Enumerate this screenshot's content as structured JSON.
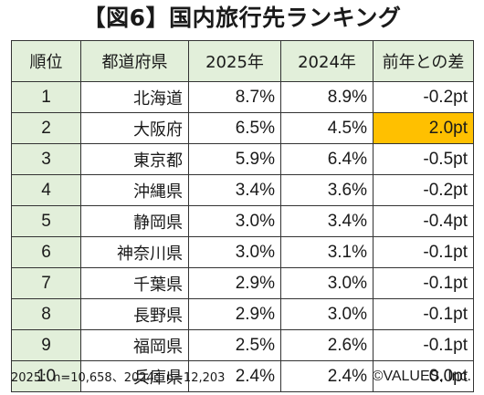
{
  "title": "【図6】国内旅行先ランキング",
  "colors": {
    "header_bg": "#e2efda",
    "rank_bg": "#e2efda",
    "highlight": "#ffc000",
    "border": "#333333"
  },
  "chart_data": {
    "type": "table",
    "columns": [
      "順位",
      "都道府県",
      "2025年",
      "2024年",
      "前年との差"
    ],
    "rows": [
      {
        "rank": "1",
        "prefecture": "北海道",
        "y2025": "8.7%",
        "y2024": "8.9%",
        "diff": "-0.2pt",
        "highlight": false
      },
      {
        "rank": "2",
        "prefecture": "大阪府",
        "y2025": "6.5%",
        "y2024": "4.5%",
        "diff": "2.0pt",
        "highlight": true
      },
      {
        "rank": "3",
        "prefecture": "東京都",
        "y2025": "5.9%",
        "y2024": "6.4%",
        "diff": "-0.5pt",
        "highlight": false
      },
      {
        "rank": "4",
        "prefecture": "沖縄県",
        "y2025": "3.4%",
        "y2024": "3.6%",
        "diff": "-0.2pt",
        "highlight": false
      },
      {
        "rank": "5",
        "prefecture": "静岡県",
        "y2025": "3.0%",
        "y2024": "3.4%",
        "diff": "-0.4pt",
        "highlight": false
      },
      {
        "rank": "6",
        "prefecture": "神奈川県",
        "y2025": "3.0%",
        "y2024": "3.1%",
        "diff": "-0.1pt",
        "highlight": false
      },
      {
        "rank": "7",
        "prefecture": "千葉県",
        "y2025": "2.9%",
        "y2024": "3.0%",
        "diff": "-0.1pt",
        "highlight": false
      },
      {
        "rank": "8",
        "prefecture": "長野県",
        "y2025": "2.9%",
        "y2024": "3.0%",
        "diff": "-0.1pt",
        "highlight": false
      },
      {
        "rank": "9",
        "prefecture": "福岡県",
        "y2025": "2.5%",
        "y2024": "2.6%",
        "diff": "-0.1pt",
        "highlight": false
      },
      {
        "rank": "10",
        "prefecture": "兵庫県",
        "y2025": "2.4%",
        "y2024": "2.4%",
        "diff": "0.0pt",
        "highlight": false
      }
    ]
  },
  "footer": {
    "sample_note": "2025：n=10,658、2024：n=12,203",
    "copyright": "©VALUES, Inc."
  }
}
